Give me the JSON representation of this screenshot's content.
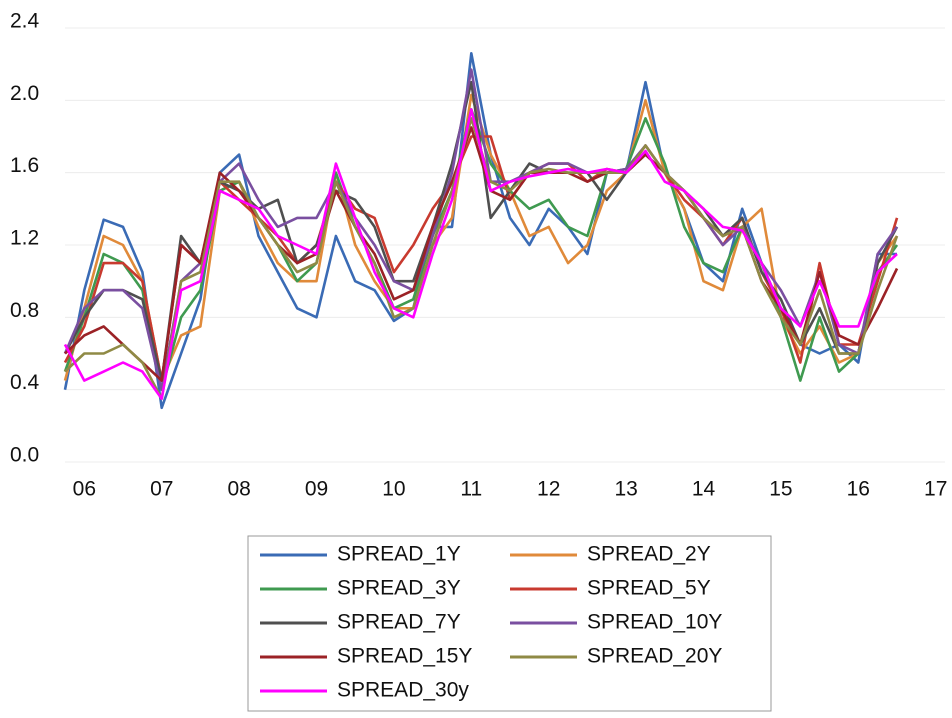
{
  "chart_data": {
    "type": "line",
    "x": [
      2005.75,
      2006,
      2006.25,
      2006.5,
      2006.75,
      2007,
      2007.25,
      2007.5,
      2007.75,
      2008,
      2008.25,
      2008.5,
      2008.75,
      2009,
      2009.25,
      2009.5,
      2009.75,
      2010,
      2010.25,
      2010.5,
      2010.75,
      2011,
      2011.25,
      2011.5,
      2011.75,
      2012,
      2012.25,
      2012.5,
      2012.75,
      2013,
      2013.25,
      2013.5,
      2013.75,
      2014,
      2014.25,
      2014.5,
      2014.75,
      2015,
      2015.25,
      2015.5,
      2015.75,
      2016,
      2016.25,
      2016.5
    ],
    "xlim": [
      2005.75,
      2017.12
    ],
    "xticks": [
      {
        "value": 2006,
        "label": "06"
      },
      {
        "value": 2007,
        "label": "07"
      },
      {
        "value": 2008,
        "label": "08"
      },
      {
        "value": 2009,
        "label": "09"
      },
      {
        "value": 2010,
        "label": "10"
      },
      {
        "value": 2011,
        "label": "11"
      },
      {
        "value": 2012,
        "label": "12"
      },
      {
        "value": 2013,
        "label": "13"
      },
      {
        "value": 2014,
        "label": "14"
      },
      {
        "value": 2015,
        "label": "15"
      },
      {
        "value": 2016,
        "label": "16"
      },
      {
        "value": 2017,
        "label": "17"
      }
    ],
    "ylim": [
      0,
      2.4
    ],
    "yticks": [
      {
        "value": 0,
        "label": "0.0"
      },
      0.4,
      0.8,
      1.2,
      1.6,
      {
        "value": 2,
        "label": "2.0"
      },
      2.4
    ],
    "grid": true,
    "legend": "bottom",
    "series": [
      {
        "name": "SPREAD_1Y",
        "color": "#3a6bb5",
        "values": [
          0.4,
          0.95,
          1.34,
          1.3,
          1.05,
          0.3,
          0.6,
          0.9,
          1.6,
          1.7,
          1.25,
          1.05,
          0.85,
          0.8,
          1.25,
          1.0,
          0.95,
          0.78,
          0.85,
          1.3,
          1.3,
          2.26,
          1.7,
          1.35,
          1.2,
          1.4,
          1.3,
          1.15,
          1.6,
          1.6,
          2.1,
          1.6,
          1.4,
          1.1,
          1.0,
          1.4,
          1.1,
          0.85,
          0.65,
          0.6,
          0.65,
          0.55,
          1.15,
          1.15
        ]
      },
      {
        "name": "SPREAD_2Y",
        "color": "#e08a3a",
        "values": [
          0.45,
          0.85,
          1.25,
          1.2,
          1.0,
          0.45,
          0.7,
          0.75,
          1.5,
          1.55,
          1.3,
          1.1,
          1.0,
          1.0,
          1.6,
          1.2,
          1.0,
          0.85,
          0.85,
          1.2,
          1.35,
          2.03,
          1.7,
          1.5,
          1.25,
          1.3,
          1.1,
          1.2,
          1.5,
          1.6,
          2.0,
          1.6,
          1.4,
          1.0,
          0.95,
          1.3,
          1.4,
          0.8,
          0.6,
          0.75,
          0.55,
          0.6,
          1.1,
          1.25
        ]
      },
      {
        "name": "SPREAD_3Y",
        "color": "#3f9a50",
        "values": [
          0.5,
          0.8,
          1.15,
          1.1,
          0.95,
          0.4,
          0.8,
          0.95,
          1.5,
          1.55,
          1.35,
          1.2,
          1.0,
          1.1,
          1.6,
          1.3,
          1.1,
          0.85,
          0.9,
          1.25,
          1.5,
          1.95,
          1.65,
          1.5,
          1.4,
          1.45,
          1.3,
          1.25,
          1.6,
          1.62,
          1.9,
          1.65,
          1.3,
          1.1,
          1.05,
          1.3,
          1.1,
          0.8,
          0.45,
          0.8,
          0.5,
          0.6,
          1.05,
          1.2
        ]
      },
      {
        "name": "SPREAD_5Y",
        "color": "#c83a2f",
        "values": [
          0.55,
          0.75,
          1.1,
          1.1,
          1.0,
          0.45,
          1.2,
          1.1,
          1.55,
          1.45,
          1.35,
          1.25,
          1.1,
          1.2,
          1.55,
          1.4,
          1.35,
          1.05,
          1.2,
          1.4,
          1.55,
          1.8,
          1.8,
          1.45,
          1.6,
          1.65,
          1.65,
          1.55,
          1.62,
          1.6,
          1.75,
          1.6,
          1.45,
          1.35,
          1.2,
          1.35,
          1.05,
          0.85,
          0.55,
          1.1,
          0.65,
          0.65,
          1.0,
          1.35
        ]
      },
      {
        "name": "SPREAD_7Y",
        "color": "#4f4f4f",
        "values": [
          0.6,
          0.8,
          0.95,
          0.95,
          0.9,
          0.45,
          1.25,
          1.1,
          1.55,
          1.5,
          1.4,
          1.45,
          1.1,
          1.2,
          1.5,
          1.45,
          1.3,
          1.0,
          1.0,
          1.3,
          1.65,
          2.1,
          1.35,
          1.5,
          1.65,
          1.6,
          1.6,
          1.6,
          1.45,
          1.6,
          1.7,
          1.6,
          1.5,
          1.4,
          1.25,
          1.35,
          1.05,
          0.9,
          0.65,
          0.85,
          0.6,
          0.6,
          1.1,
          1.3
        ]
      },
      {
        "name": "SPREAD_10Y",
        "color": "#7a4fa0",
        "values": [
          0.6,
          0.85,
          0.95,
          0.95,
          0.85,
          0.4,
          1.0,
          1.1,
          1.55,
          1.65,
          1.45,
          1.3,
          1.35,
          1.35,
          1.55,
          1.35,
          1.2,
          1.0,
          0.95,
          1.25,
          1.6,
          2.17,
          1.55,
          1.55,
          1.6,
          1.65,
          1.65,
          1.6,
          1.6,
          1.62,
          1.75,
          1.6,
          1.5,
          1.35,
          1.2,
          1.3,
          1.1,
          0.95,
          0.75,
          1.05,
          0.65,
          0.6,
          1.15,
          1.3
        ]
      },
      {
        "name": "SPREAD_15Y",
        "color": "#9b2226",
        "values": [
          0.6,
          0.7,
          0.75,
          0.65,
          0.55,
          0.45,
          1.2,
          1.1,
          1.6,
          1.5,
          1.35,
          1.2,
          1.1,
          1.15,
          1.5,
          1.3,
          1.15,
          0.9,
          0.95,
          1.3,
          1.55,
          1.85,
          1.5,
          1.45,
          1.6,
          1.6,
          1.6,
          1.55,
          1.6,
          1.6,
          1.7,
          1.6,
          1.5,
          1.35,
          1.25,
          1.3,
          1.0,
          0.85,
          0.65,
          1.05,
          0.7,
          0.65,
          0.85,
          1.07
        ]
      },
      {
        "name": "SPREAD_20Y",
        "color": "#8f8a45",
        "values": [
          0.5,
          0.6,
          0.6,
          0.65,
          0.55,
          0.35,
          1.0,
          1.05,
          1.55,
          1.55,
          1.35,
          1.2,
          1.05,
          1.1,
          1.55,
          1.3,
          1.1,
          0.8,
          0.85,
          1.2,
          1.5,
          1.9,
          1.55,
          1.5,
          1.6,
          1.62,
          1.6,
          1.6,
          1.6,
          1.6,
          1.75,
          1.6,
          1.5,
          1.35,
          1.25,
          1.3,
          1.0,
          0.8,
          0.65,
          0.95,
          0.6,
          0.6,
          0.95,
          1.25
        ]
      },
      {
        "name": "SPREAD_30y",
        "color": "#ff00ff",
        "values": [
          0.65,
          0.45,
          0.5,
          0.55,
          0.5,
          0.35,
          0.95,
          1.0,
          1.5,
          1.45,
          1.4,
          1.25,
          1.2,
          1.15,
          1.65,
          1.35,
          1.05,
          0.85,
          0.8,
          1.15,
          1.45,
          1.95,
          1.5,
          1.55,
          1.58,
          1.6,
          1.62,
          1.6,
          1.62,
          1.6,
          1.72,
          1.55,
          1.5,
          1.4,
          1.3,
          1.28,
          1.1,
          0.85,
          0.75,
          1.0,
          0.75,
          0.75,
          1.05,
          1.15
        ]
      }
    ]
  }
}
